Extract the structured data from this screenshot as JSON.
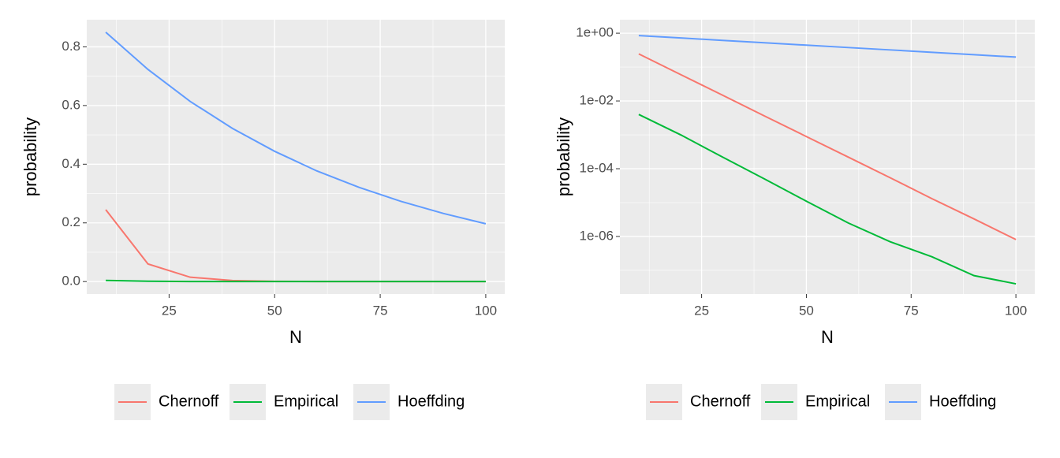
{
  "chart_data": [
    {
      "type": "line",
      "x_label": "N",
      "y_label": "probability",
      "legend": "bottom",
      "grid": true,
      "log_y": false,
      "x": [
        10,
        20,
        30,
        40,
        50,
        60,
        70,
        80,
        90,
        100
      ],
      "series": [
        {
          "name": "Chernoff",
          "color": "#F8766D",
          "values": [
            0.245,
            0.06,
            0.0148,
            0.0036,
            0.00089,
            0.00022,
            5.4e-05,
            1.3e-05,
            3.3e-06,
            8.1e-07
          ]
        },
        {
          "name": "Empirical",
          "color": "#00BA38",
          "values": [
            0.004,
            0.001,
            0.00022,
            5e-05,
            1.1e-05,
            2.5e-06,
            7e-07,
            2.5e-07,
            7e-08,
            4e-08
          ]
        },
        {
          "name": "Hoeffding",
          "color": "#619CFF",
          "values": [
            0.85,
            0.723,
            0.614,
            0.522,
            0.444,
            0.377,
            0.321,
            0.273,
            0.232,
            0.197
          ]
        }
      ],
      "xlim": [
        5.5,
        104.5
      ],
      "xticks": [
        25,
        50,
        75,
        100
      ],
      "ylim": [
        -0.0425,
        0.8925
      ],
      "yticks": [
        {
          "value": 0,
          "label": "0.0"
        },
        0.2,
        0.4,
        0.6,
        0.8
      ]
    },
    {
      "type": "line",
      "x_label": "N",
      "y_label": "probability",
      "legend": "bottom",
      "grid": true,
      "log_y": true,
      "x": [
        10,
        20,
        30,
        40,
        50,
        60,
        70,
        80,
        90,
        100
      ],
      "series": [
        {
          "name": "Chernoff",
          "color": "#F8766D",
          "values": [
            0.245,
            0.06,
            0.0148,
            0.0036,
            0.00089,
            0.00022,
            5.4e-05,
            1.3e-05,
            3.3e-06,
            8.1e-07
          ]
        },
        {
          "name": "Empirical",
          "color": "#00BA38",
          "values": [
            0.004,
            0.001,
            0.00022,
            5e-05,
            1.1e-05,
            2.5e-06,
            7e-07,
            2.5e-07,
            7e-08,
            4e-08
          ]
        },
        {
          "name": "Hoeffding",
          "color": "#619CFF",
          "values": [
            0.85,
            0.723,
            0.614,
            0.522,
            0.444,
            0.377,
            0.321,
            0.273,
            0.232,
            0.197
          ]
        }
      ],
      "xlim": [
        5.5,
        104.5
      ],
      "xticks": [
        25,
        50,
        75,
        100
      ],
      "ylim": [
        2e-08,
        2.5
      ],
      "yticks": [
        {
          "value": 1,
          "label": "1e+00"
        },
        {
          "value": 0.01,
          "label": "1e-02"
        },
        {
          "value": 0.0001,
          "label": "1e-04"
        },
        {
          "value": 1e-06,
          "label": "1e-06"
        }
      ]
    }
  ]
}
